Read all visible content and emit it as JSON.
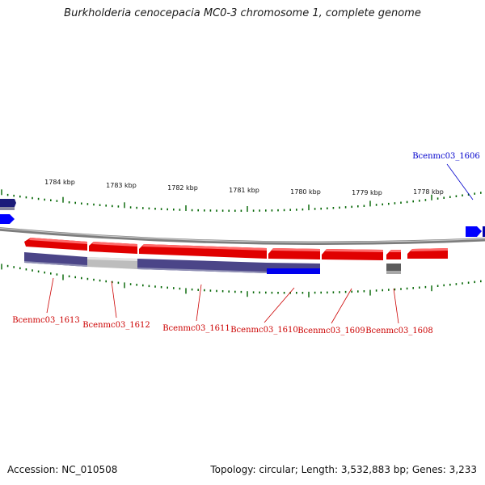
{
  "title": "Burkholderia cenocepacia MC0-3 chromosome 1, complete genome",
  "footer": {
    "accession": "Accession: NC_010508",
    "summary": "Topology: circular; Length: 3,532,883 bp; Genes: 3,233"
  },
  "colors": {
    "forward_gene": "#ff0000",
    "reverse_gene": "#4b4588",
    "reverse_gene_grey": "#bdbdbd",
    "blue_gene": "#0000ff",
    "backbone": "#808080",
    "tick": "#006400",
    "label_red": "#cc0000",
    "label_blue": "#0000cc"
  },
  "ruler": {
    "unit": "kbp",
    "labels": [
      "1784 kbp",
      "1783 kbp",
      "1782 kbp",
      "1781 kbp",
      "1780 kbp",
      "1779 kbp",
      "1778 kbp"
    ]
  },
  "genes": [
    {
      "label": "Bcenmc03_1606",
      "label_color": "blue"
    },
    {
      "label": "Bcenmc03_1608",
      "label_color": "red"
    },
    {
      "label": "Bcenmc03_1609",
      "label_color": "red"
    },
    {
      "label": "Bcenmc03_1610",
      "label_color": "red"
    },
    {
      "label": "Bcenmc03_1611",
      "label_color": "red"
    },
    {
      "label": "Bcenmc03_1612",
      "label_color": "red"
    },
    {
      "label": "Bcenmc03_1613",
      "label_color": "red"
    }
  ]
}
